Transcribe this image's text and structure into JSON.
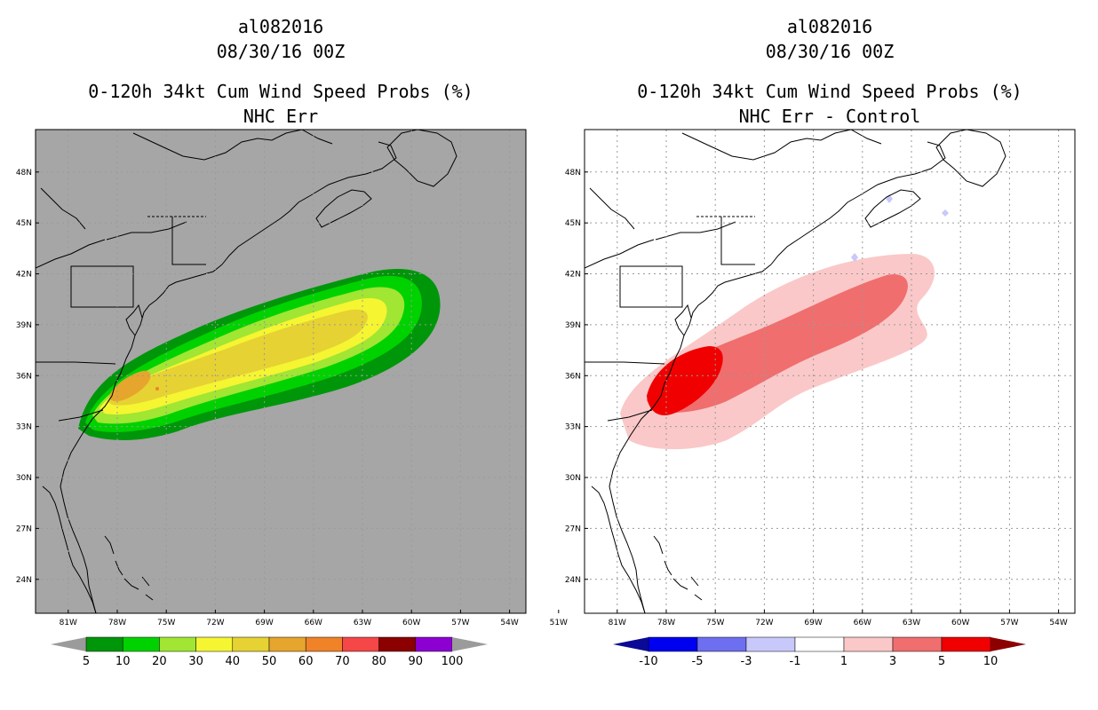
{
  "left": {
    "storm_id": "al082016",
    "datetime": "08/30/16 00Z",
    "product": "0-120h 34kt Cum Wind Speed Probs (%)",
    "subtitle": "NHC Err",
    "legend": {
      "values": [
        "5",
        "10",
        "20",
        "30",
        "40",
        "50",
        "60",
        "70",
        "80",
        "90",
        "100"
      ],
      "colors": [
        "#9b9b9b",
        "#00960a",
        "#00d200",
        "#a0e632",
        "#f5f532",
        "#e6d232",
        "#e6a52d",
        "#f08228",
        "#f54648",
        "#8c0000",
        "#8c00d2",
        "#9b9b9b"
      ]
    }
  },
  "right": {
    "storm_id": "al082016",
    "datetime": "08/30/16 00Z",
    "product": "0-120h 34kt Cum Wind Speed Probs (%)",
    "subtitle": "NHC Err - Control",
    "legend": {
      "values": [
        "-10",
        "-5",
        "-3",
        "-1",
        "1",
        "3",
        "5",
        "10"
      ],
      "colors": [
        "#0a0a96",
        "#0000f0",
        "#6e6ef0",
        "#c8c8fa",
        "#ffffff",
        "#fac8c8",
        "#f06e6e",
        "#f00000",
        "#8c0000"
      ]
    }
  },
  "axes": {
    "lat_labels": [
      "48N",
      "45N",
      "42N",
      "39N",
      "36N",
      "33N",
      "30N",
      "27N",
      "24N"
    ],
    "lat_values": [
      48,
      45,
      42,
      39,
      36,
      33,
      30,
      27,
      24
    ],
    "lon_labels": [
      "81W",
      "78W",
      "75W",
      "72W",
      "69W",
      "66W",
      "63W",
      "60W",
      "57W",
      "54W",
      "51W"
    ],
    "lon_values": [
      -81,
      -78,
      -75,
      -72,
      -69,
      -66,
      -63,
      -60,
      -57,
      -54,
      -51
    ],
    "lat_range": [
      22,
      50.5
    ],
    "lon_range": [
      -83,
      -53
    ]
  },
  "colors": {
    "ocean_left": "#a6a6a6",
    "ocean_right": "#ffffff",
    "coast": "#000000",
    "grid": "#9a9a9a"
  }
}
